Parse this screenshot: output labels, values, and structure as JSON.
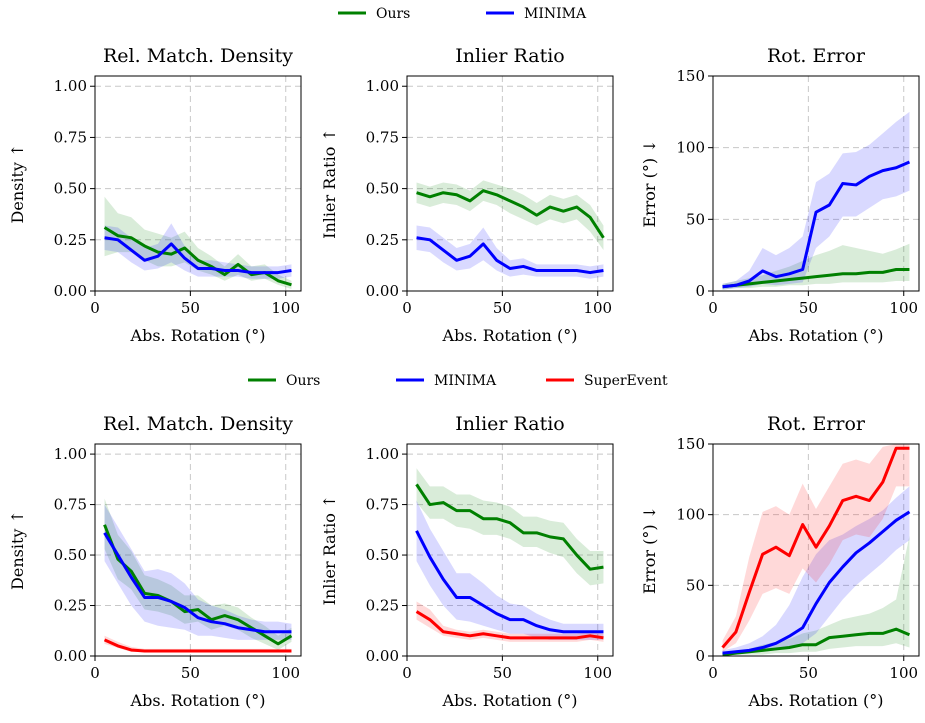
{
  "legends": [
    {
      "items": [
        {
          "label": "Ours",
          "color": "#008000"
        },
        {
          "label": "MINIMA",
          "color": "#0000ff"
        }
      ]
    },
    {
      "items": [
        {
          "label": "Ours",
          "color": "#008000"
        },
        {
          "label": "MINIMA",
          "color": "#0000ff"
        },
        {
          "label": "SuperEvent",
          "color": "#ff0000"
        }
      ]
    }
  ],
  "chart_data": [
    {
      "type": "line",
      "row": 0,
      "col": 0,
      "title": "Rel. Match. Density",
      "xlabel": "Abs. Rotation (°)",
      "ylabel": "Density ↑",
      "xlim": [
        0,
        108
      ],
      "ylim": [
        0,
        1.05
      ],
      "xticks": [
        0,
        50,
        100
      ],
      "xtick_labels": [
        "0",
        "50",
        "100"
      ],
      "yticks": [
        0,
        0.25,
        0.5,
        0.75,
        1.0
      ],
      "ytick_labels": [
        "0.00",
        "0.25",
        "0.50",
        "0.75",
        "1.00"
      ],
      "grid": true,
      "x": [
        5,
        12,
        19,
        26,
        33,
        40,
        47,
        54,
        61,
        68,
        75,
        82,
        89,
        96,
        103
      ],
      "series": [
        {
          "name": "Ours",
          "color": "#008000",
          "values": [
            0.31,
            0.27,
            0.26,
            0.22,
            0.19,
            0.18,
            0.21,
            0.15,
            0.12,
            0.08,
            0.13,
            0.08,
            0.09,
            0.05,
            0.03
          ],
          "lower": [
            0.17,
            0.19,
            0.19,
            0.15,
            0.12,
            0.12,
            0.14,
            0.1,
            0.08,
            0.05,
            0.08,
            0.05,
            0.06,
            0.03,
            0.01
          ],
          "upper": [
            0.46,
            0.38,
            0.36,
            0.3,
            0.28,
            0.26,
            0.29,
            0.21,
            0.17,
            0.12,
            0.18,
            0.12,
            0.13,
            0.08,
            0.05
          ]
        },
        {
          "name": "MINIMA",
          "color": "#0000ff",
          "values": [
            0.26,
            0.25,
            0.2,
            0.15,
            0.17,
            0.23,
            0.16,
            0.11,
            0.11,
            0.1,
            0.1,
            0.09,
            0.09,
            0.09,
            0.1
          ],
          "lower": [
            0.2,
            0.19,
            0.14,
            0.1,
            0.11,
            0.14,
            0.1,
            0.07,
            0.07,
            0.07,
            0.07,
            0.06,
            0.06,
            0.06,
            0.07
          ],
          "upper": [
            0.32,
            0.31,
            0.26,
            0.21,
            0.23,
            0.33,
            0.22,
            0.15,
            0.15,
            0.14,
            0.13,
            0.12,
            0.12,
            0.12,
            0.13
          ]
        }
      ]
    },
    {
      "type": "line",
      "row": 0,
      "col": 1,
      "title": "Inlier Ratio",
      "xlabel": "Abs. Rotation (°)",
      "ylabel": "Inlier Ratio ↑",
      "xlim": [
        0,
        108
      ],
      "ylim": [
        0,
        1.05
      ],
      "xticks": [
        0,
        50,
        100
      ],
      "xtick_labels": [
        "0",
        "50",
        "100"
      ],
      "yticks": [
        0,
        0.25,
        0.5,
        0.75,
        1.0
      ],
      "ytick_labels": [
        "0.00",
        "0.25",
        "0.50",
        "0.75",
        "1.00"
      ],
      "grid": true,
      "x": [
        5,
        12,
        19,
        26,
        33,
        40,
        47,
        54,
        61,
        68,
        75,
        82,
        89,
        96,
        103
      ],
      "series": [
        {
          "name": "Ours",
          "color": "#008000",
          "values": [
            0.48,
            0.46,
            0.48,
            0.47,
            0.44,
            0.49,
            0.47,
            0.44,
            0.41,
            0.37,
            0.41,
            0.39,
            0.41,
            0.36,
            0.26
          ],
          "lower": [
            0.43,
            0.41,
            0.43,
            0.42,
            0.39,
            0.44,
            0.42,
            0.38,
            0.35,
            0.32,
            0.35,
            0.33,
            0.35,
            0.29,
            0.2
          ],
          "upper": [
            0.53,
            0.51,
            0.53,
            0.52,
            0.49,
            0.54,
            0.52,
            0.5,
            0.47,
            0.43,
            0.47,
            0.45,
            0.47,
            0.42,
            0.32
          ]
        },
        {
          "name": "MINIMA",
          "color": "#0000ff",
          "values": [
            0.26,
            0.25,
            0.2,
            0.15,
            0.17,
            0.23,
            0.15,
            0.11,
            0.12,
            0.1,
            0.1,
            0.1,
            0.1,
            0.09,
            0.1
          ],
          "lower": [
            0.2,
            0.19,
            0.14,
            0.1,
            0.11,
            0.15,
            0.1,
            0.07,
            0.08,
            0.07,
            0.07,
            0.07,
            0.07,
            0.06,
            0.07
          ],
          "upper": [
            0.32,
            0.31,
            0.26,
            0.21,
            0.23,
            0.31,
            0.21,
            0.15,
            0.16,
            0.13,
            0.13,
            0.13,
            0.13,
            0.12,
            0.13
          ]
        }
      ]
    },
    {
      "type": "line",
      "row": 0,
      "col": 2,
      "title": "Rot. Error",
      "xlabel": "Abs. Rotation (°)",
      "ylabel": "Error (°) ↓",
      "xlim": [
        0,
        108
      ],
      "ylim": [
        0,
        150
      ],
      "xticks": [
        0,
        50,
        100
      ],
      "xtick_labels": [
        "0",
        "50",
        "100"
      ],
      "yticks": [
        0,
        50,
        100,
        150
      ],
      "ytick_labels": [
        "0",
        "50",
        "100",
        "150"
      ],
      "grid": true,
      "x": [
        5,
        12,
        19,
        26,
        33,
        40,
        47,
        54,
        61,
        68,
        75,
        82,
        89,
        96,
        103
      ],
      "series": [
        {
          "name": "Ours",
          "color": "#008000",
          "values": [
            3,
            4,
            5,
            6,
            7,
            8,
            9,
            10,
            11,
            12,
            12,
            13,
            13,
            15,
            15
          ],
          "lower": [
            1,
            2,
            2,
            3,
            3,
            4,
            4,
            5,
            5,
            6,
            6,
            6,
            6,
            7,
            7
          ],
          "upper": [
            5,
            7,
            9,
            11,
            14,
            17,
            21,
            25,
            28,
            32,
            30,
            28,
            26,
            29,
            33
          ]
        },
        {
          "name": "MINIMA",
          "color": "#0000ff",
          "values": [
            3,
            4,
            7,
            14,
            10,
            12,
            15,
            55,
            60,
            75,
            74,
            80,
            84,
            86,
            90
          ],
          "lower": [
            1,
            2,
            3,
            5,
            4,
            5,
            6,
            30,
            38,
            52,
            52,
            58,
            64,
            66,
            70
          ],
          "upper": [
            5,
            7,
            14,
            30,
            25,
            30,
            38,
            76,
            82,
            96,
            97,
            102,
            110,
            118,
            125
          ]
        }
      ]
    },
    {
      "type": "line",
      "row": 1,
      "col": 0,
      "title": "Rel. Match. Density",
      "xlabel": "Abs. Rotation (°)",
      "ylabel": "Density ↑",
      "xlim": [
        0,
        108
      ],
      "ylim": [
        0,
        1.05
      ],
      "xticks": [
        0,
        50,
        100
      ],
      "xtick_labels": [
        "0",
        "50",
        "100"
      ],
      "yticks": [
        0,
        0.25,
        0.5,
        0.75,
        1.0
      ],
      "ytick_labels": [
        "0.00",
        "0.25",
        "0.50",
        "0.75",
        "1.00"
      ],
      "grid": true,
      "x": [
        5,
        12,
        19,
        26,
        33,
        40,
        47,
        54,
        61,
        68,
        75,
        82,
        89,
        96,
        103
      ],
      "series": [
        {
          "name": "Ours",
          "color": "#008000",
          "values": [
            0.65,
            0.48,
            0.42,
            0.31,
            0.3,
            0.27,
            0.22,
            0.23,
            0.18,
            0.2,
            0.18,
            0.14,
            0.1,
            0.06,
            0.1
          ],
          "lower": [
            0.53,
            0.38,
            0.33,
            0.23,
            0.22,
            0.2,
            0.16,
            0.17,
            0.13,
            0.15,
            0.13,
            0.09,
            0.06,
            0.03,
            0.07
          ],
          "upper": [
            0.78,
            0.6,
            0.52,
            0.4,
            0.38,
            0.35,
            0.3,
            0.3,
            0.25,
            0.26,
            0.24,
            0.19,
            0.15,
            0.1,
            0.14
          ]
        },
        {
          "name": "MINIMA",
          "color": "#0000ff",
          "values": [
            0.61,
            0.5,
            0.39,
            0.29,
            0.29,
            0.27,
            0.24,
            0.19,
            0.17,
            0.16,
            0.14,
            0.13,
            0.12,
            0.12,
            0.12
          ],
          "lower": [
            0.47,
            0.36,
            0.25,
            0.17,
            0.15,
            0.14,
            0.13,
            0.1,
            0.1,
            0.09,
            0.08,
            0.08,
            0.08,
            0.08,
            0.08
          ],
          "upper": [
            0.75,
            0.64,
            0.53,
            0.42,
            0.43,
            0.41,
            0.36,
            0.28,
            0.25,
            0.23,
            0.2,
            0.18,
            0.17,
            0.17,
            0.16
          ]
        },
        {
          "name": "SuperEvent",
          "color": "#ff0000",
          "values": [
            0.08,
            0.05,
            0.03,
            0.025,
            0.025,
            0.025,
            0.025,
            0.025,
            0.025,
            0.025,
            0.025,
            0.025,
            0.025,
            0.025,
            0.025
          ],
          "lower": [
            0.06,
            0.04,
            0.02,
            0.02,
            0.02,
            0.02,
            0.02,
            0.02,
            0.02,
            0.02,
            0.02,
            0.02,
            0.02,
            0.02,
            0.02
          ],
          "upper": [
            0.1,
            0.07,
            0.045,
            0.035,
            0.035,
            0.035,
            0.035,
            0.035,
            0.035,
            0.035,
            0.035,
            0.035,
            0.035,
            0.035,
            0.035
          ]
        }
      ]
    },
    {
      "type": "line",
      "row": 1,
      "col": 1,
      "title": "Inlier Ratio",
      "xlabel": "Abs. Rotation (°)",
      "ylabel": "Inlier Ratio ↑",
      "xlim": [
        0,
        108
      ],
      "ylim": [
        0,
        1.05
      ],
      "xticks": [
        0,
        50,
        100
      ],
      "xtick_labels": [
        "0",
        "50",
        "100"
      ],
      "yticks": [
        0,
        0.25,
        0.5,
        0.75,
        1.0
      ],
      "ytick_labels": [
        "0.00",
        "0.25",
        "0.50",
        "0.75",
        "1.00"
      ],
      "grid": true,
      "x": [
        5,
        12,
        19,
        26,
        33,
        40,
        47,
        54,
        61,
        68,
        75,
        82,
        89,
        96,
        103
      ],
      "series": [
        {
          "name": "Ours",
          "color": "#008000",
          "values": [
            0.85,
            0.75,
            0.76,
            0.72,
            0.72,
            0.68,
            0.68,
            0.66,
            0.61,
            0.61,
            0.59,
            0.58,
            0.5,
            0.43,
            0.44
          ],
          "lower": [
            0.76,
            0.68,
            0.68,
            0.64,
            0.63,
            0.6,
            0.6,
            0.58,
            0.54,
            0.54,
            0.51,
            0.49,
            0.41,
            0.35,
            0.36
          ],
          "upper": [
            0.93,
            0.84,
            0.84,
            0.8,
            0.8,
            0.77,
            0.76,
            0.74,
            0.69,
            0.69,
            0.67,
            0.66,
            0.58,
            0.52,
            0.52
          ]
        },
        {
          "name": "MINIMA",
          "color": "#0000ff",
          "values": [
            0.62,
            0.49,
            0.38,
            0.29,
            0.29,
            0.25,
            0.21,
            0.18,
            0.18,
            0.15,
            0.13,
            0.12,
            0.12,
            0.12,
            0.12
          ],
          "lower": [
            0.47,
            0.35,
            0.25,
            0.18,
            0.17,
            0.15,
            0.13,
            0.11,
            0.11,
            0.09,
            0.08,
            0.08,
            0.08,
            0.08,
            0.08
          ],
          "upper": [
            0.77,
            0.63,
            0.52,
            0.41,
            0.41,
            0.36,
            0.3,
            0.26,
            0.25,
            0.21,
            0.18,
            0.16,
            0.16,
            0.16,
            0.16
          ]
        },
        {
          "name": "SuperEvent",
          "color": "#ff0000",
          "values": [
            0.22,
            0.18,
            0.12,
            0.11,
            0.1,
            0.11,
            0.1,
            0.09,
            0.09,
            0.09,
            0.09,
            0.09,
            0.09,
            0.1,
            0.09
          ],
          "lower": [
            0.18,
            0.14,
            0.1,
            0.09,
            0.08,
            0.09,
            0.08,
            0.07,
            0.07,
            0.07,
            0.07,
            0.07,
            0.07,
            0.08,
            0.07
          ],
          "upper": [
            0.27,
            0.23,
            0.15,
            0.13,
            0.12,
            0.13,
            0.12,
            0.11,
            0.11,
            0.11,
            0.11,
            0.11,
            0.11,
            0.12,
            0.11
          ]
        }
      ]
    },
    {
      "type": "line",
      "row": 1,
      "col": 2,
      "title": "Rot. Error",
      "xlabel": "Abs. Rotation (°)",
      "ylabel": "Error (°) ↓",
      "xlim": [
        0,
        108
      ],
      "ylim": [
        0,
        150
      ],
      "xticks": [
        0,
        50,
        100
      ],
      "xtick_labels": [
        "0",
        "50",
        "100"
      ],
      "yticks": [
        0,
        50,
        100,
        150
      ],
      "ytick_labels": [
        "0",
        "50",
        "100",
        "150"
      ],
      "grid": true,
      "x": [
        5,
        12,
        19,
        26,
        33,
        40,
        47,
        54,
        61,
        68,
        75,
        82,
        89,
        96,
        103
      ],
      "series": [
        {
          "name": "Ours",
          "color": "#008000",
          "values": [
            1,
            2,
            3,
            4,
            5,
            6,
            8,
            8,
            13,
            14,
            15,
            16,
            16,
            19,
            15
          ],
          "lower": [
            0,
            1,
            1,
            1,
            2,
            2,
            3,
            3,
            5,
            6,
            7,
            7,
            7,
            9,
            6
          ],
          "upper": [
            2,
            3,
            5,
            8,
            10,
            12,
            16,
            18,
            22,
            26,
            28,
            30,
            34,
            40,
            85
          ]
        },
        {
          "name": "MINIMA",
          "color": "#0000ff",
          "values": [
            2,
            3,
            4,
            6,
            9,
            14,
            20,
            37,
            52,
            63,
            73,
            80,
            88,
            96,
            102
          ],
          "lower": [
            1,
            1,
            2,
            3,
            4,
            6,
            9,
            16,
            28,
            40,
            50,
            58,
            66,
            75,
            82
          ],
          "upper": [
            4,
            6,
            9,
            14,
            22,
            36,
            56,
            72,
            82,
            86,
            92,
            97,
            103,
            112,
            120
          ]
        },
        {
          "name": "SuperEvent",
          "color": "#ff0000",
          "values": [
            6,
            17,
            45,
            72,
            77,
            71,
            93,
            77,
            92,
            110,
            113,
            110,
            123,
            147,
            147
          ],
          "lower": [
            3,
            9,
            25,
            44,
            48,
            44,
            62,
            52,
            65,
            82,
            86,
            84,
            97,
            120,
            120
          ],
          "upper": [
            11,
            28,
            70,
            102,
            106,
            100,
            122,
            104,
            120,
            136,
            139,
            136,
            148,
            150,
            150
          ]
        }
      ]
    }
  ]
}
